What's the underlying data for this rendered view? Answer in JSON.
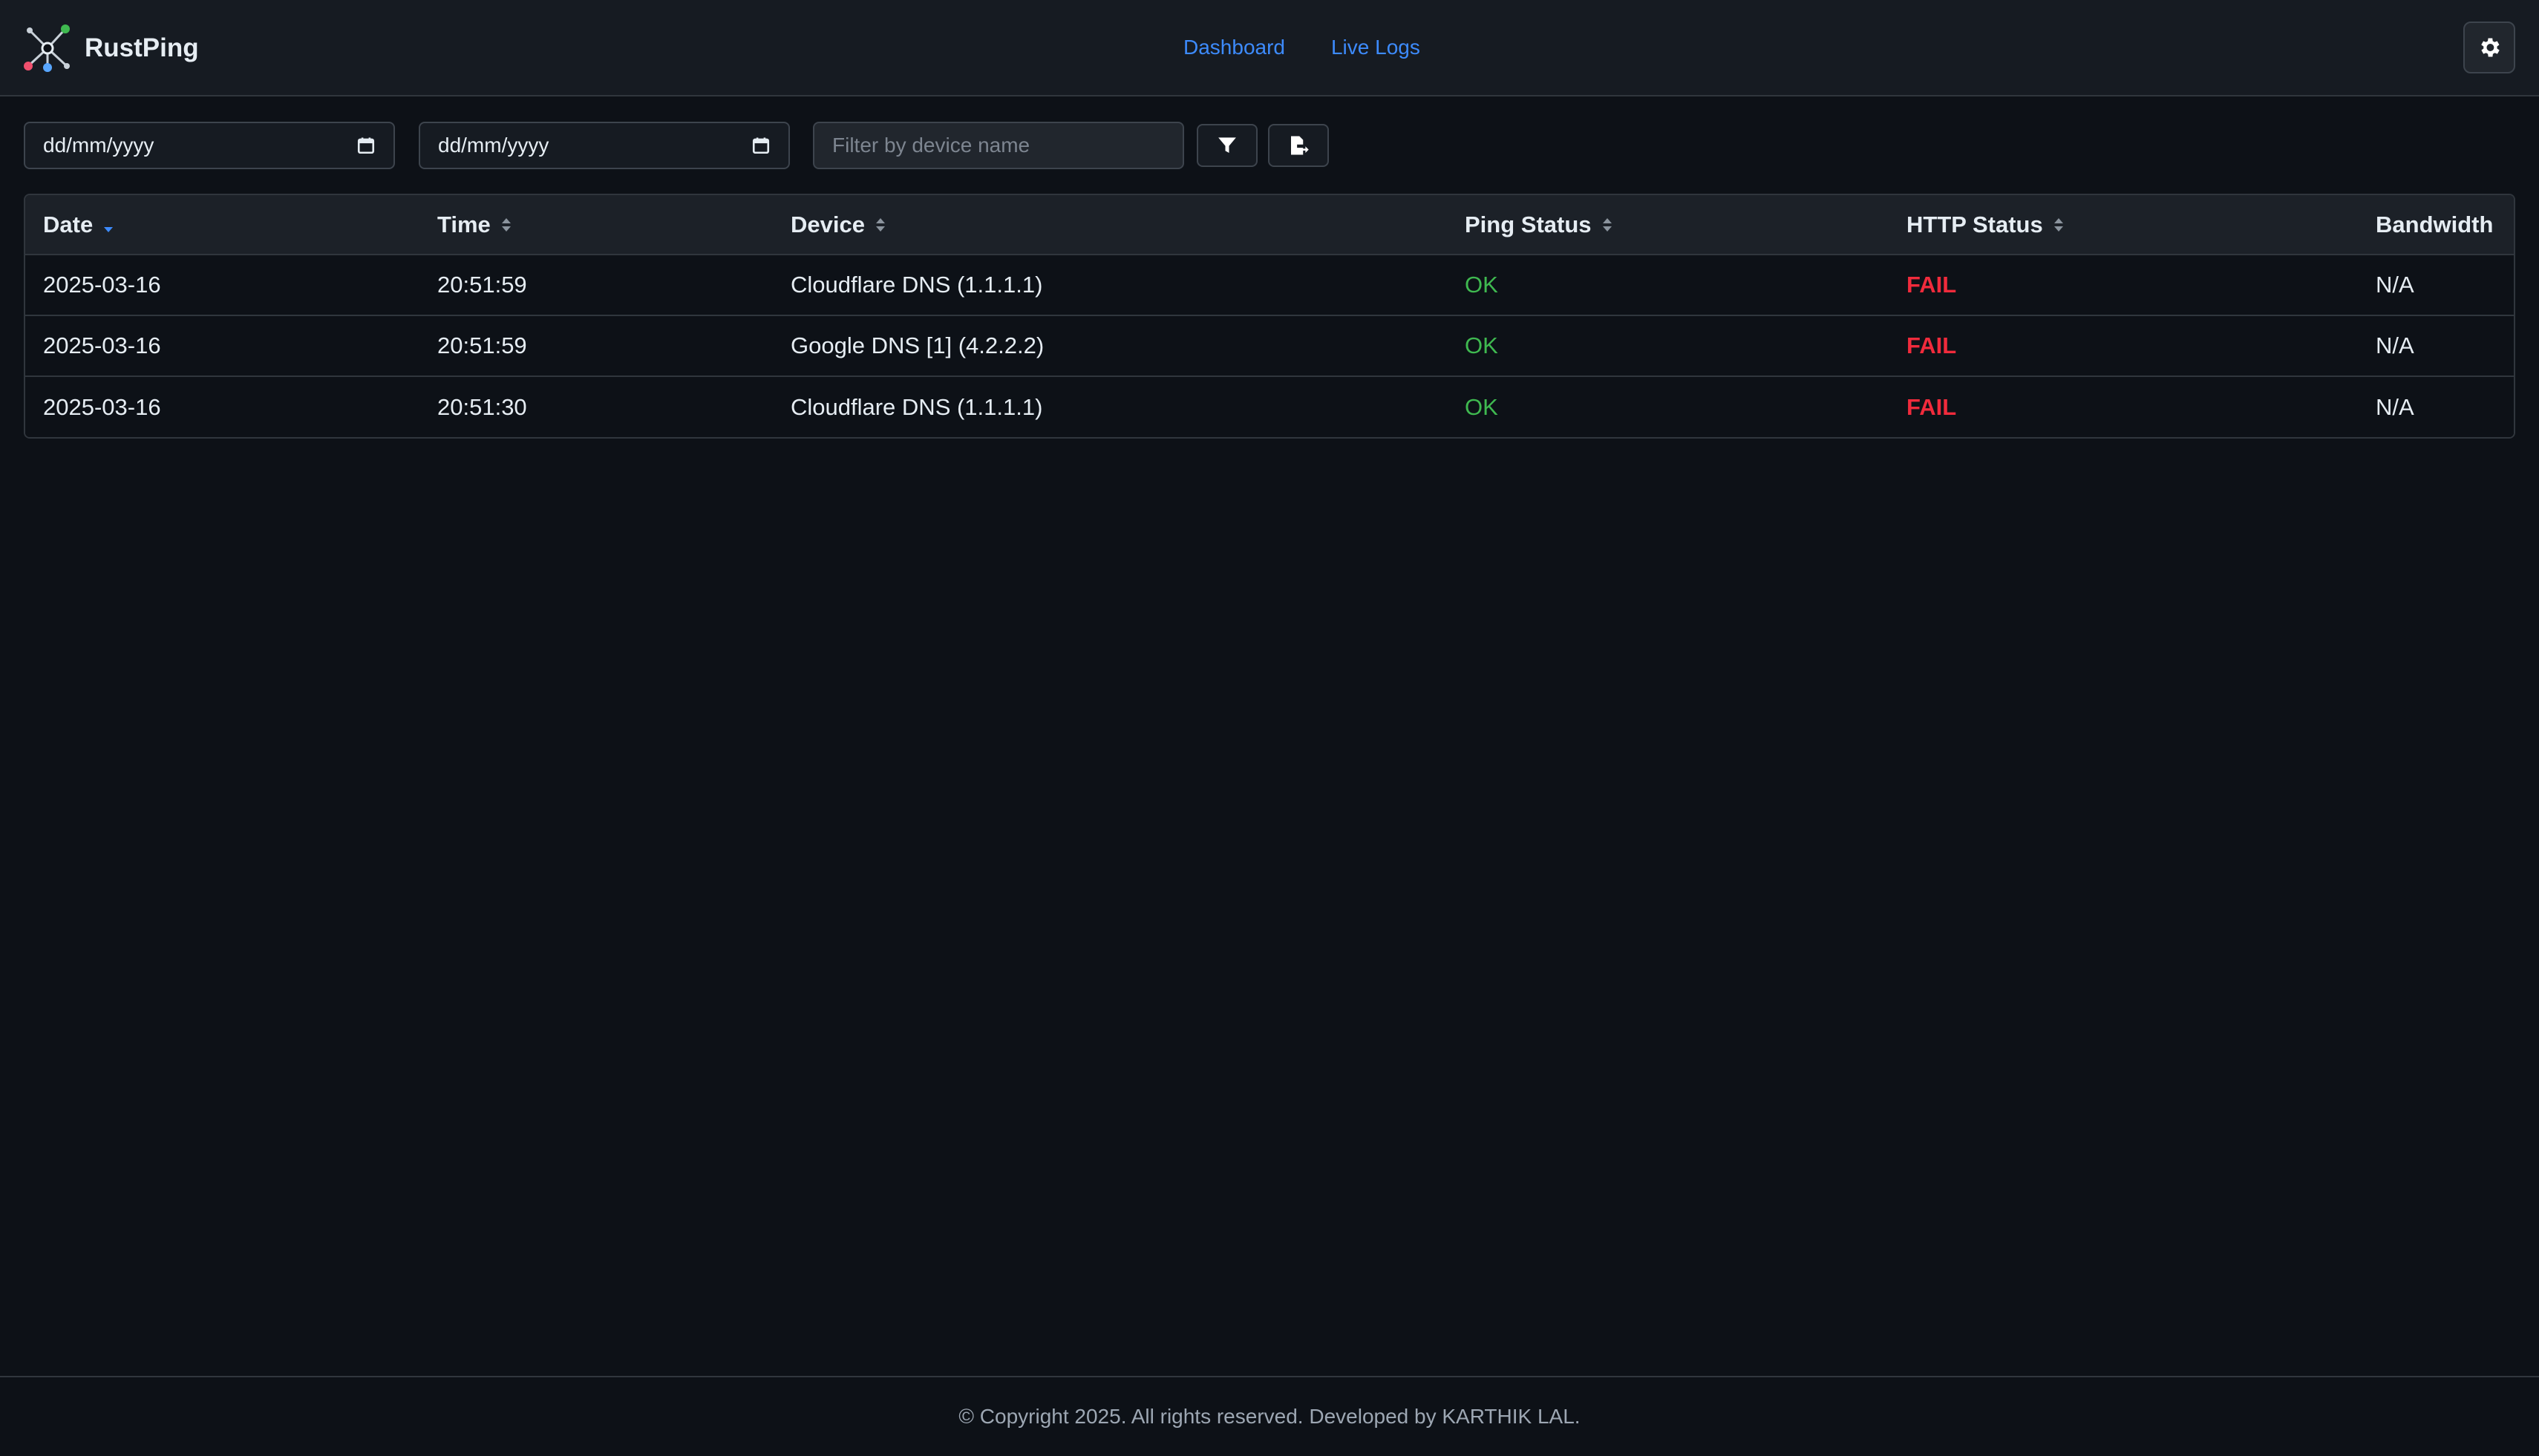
{
  "app": {
    "name": "RustPing"
  },
  "nav": {
    "items": [
      {
        "label": "Dashboard"
      },
      {
        "label": "Live Logs"
      }
    ]
  },
  "filters": {
    "start_date": "dd/mm/yyyy",
    "end_date": "dd/mm/yyyy",
    "device_placeholder": "Filter by device name",
    "device_value": ""
  },
  "table": {
    "columns": [
      {
        "label": "Date",
        "sort": "descending"
      },
      {
        "label": "Time",
        "sort": "unsorted"
      },
      {
        "label": "Device",
        "sort": "unsorted"
      },
      {
        "label": "Ping Status",
        "sort": "unsorted"
      },
      {
        "label": "HTTP Status",
        "sort": "unsorted"
      },
      {
        "label": "Bandwidth",
        "sort": "none"
      }
    ],
    "rows": [
      {
        "date": "2025-03-16",
        "time": "20:51:59",
        "device": "Cloudflare DNS (1.1.1.1)",
        "ping": "OK",
        "http": "FAIL",
        "bandwidth": "N/A"
      },
      {
        "date": "2025-03-16",
        "time": "20:51:59",
        "device": "Google DNS [1] (4.2.2.2)",
        "ping": "OK",
        "http": "FAIL",
        "bandwidth": "N/A"
      },
      {
        "date": "2025-03-16",
        "time": "20:51:30",
        "device": "Cloudflare DNS (1.1.1.1)",
        "ping": "OK",
        "http": "FAIL",
        "bandwidth": "N/A"
      }
    ]
  },
  "footer": {
    "text": "© Copyright 2025. All rights reserved. Developed by KARTHIK LAL."
  },
  "icons": {
    "logo": "network-nodes-icon",
    "settings": "gear-icon",
    "calendar": "calendar-icon",
    "filter": "funnel-icon",
    "export": "file-export-icon",
    "sort_desc": "sort-descending-icon",
    "sort_both": "sort-icon"
  },
  "colors": {
    "background": "#0d1117",
    "header_background": "#161b22",
    "link": "#3d8bfd",
    "status_ok": "#3fb950",
    "status_fail": "#f02b3c"
  }
}
